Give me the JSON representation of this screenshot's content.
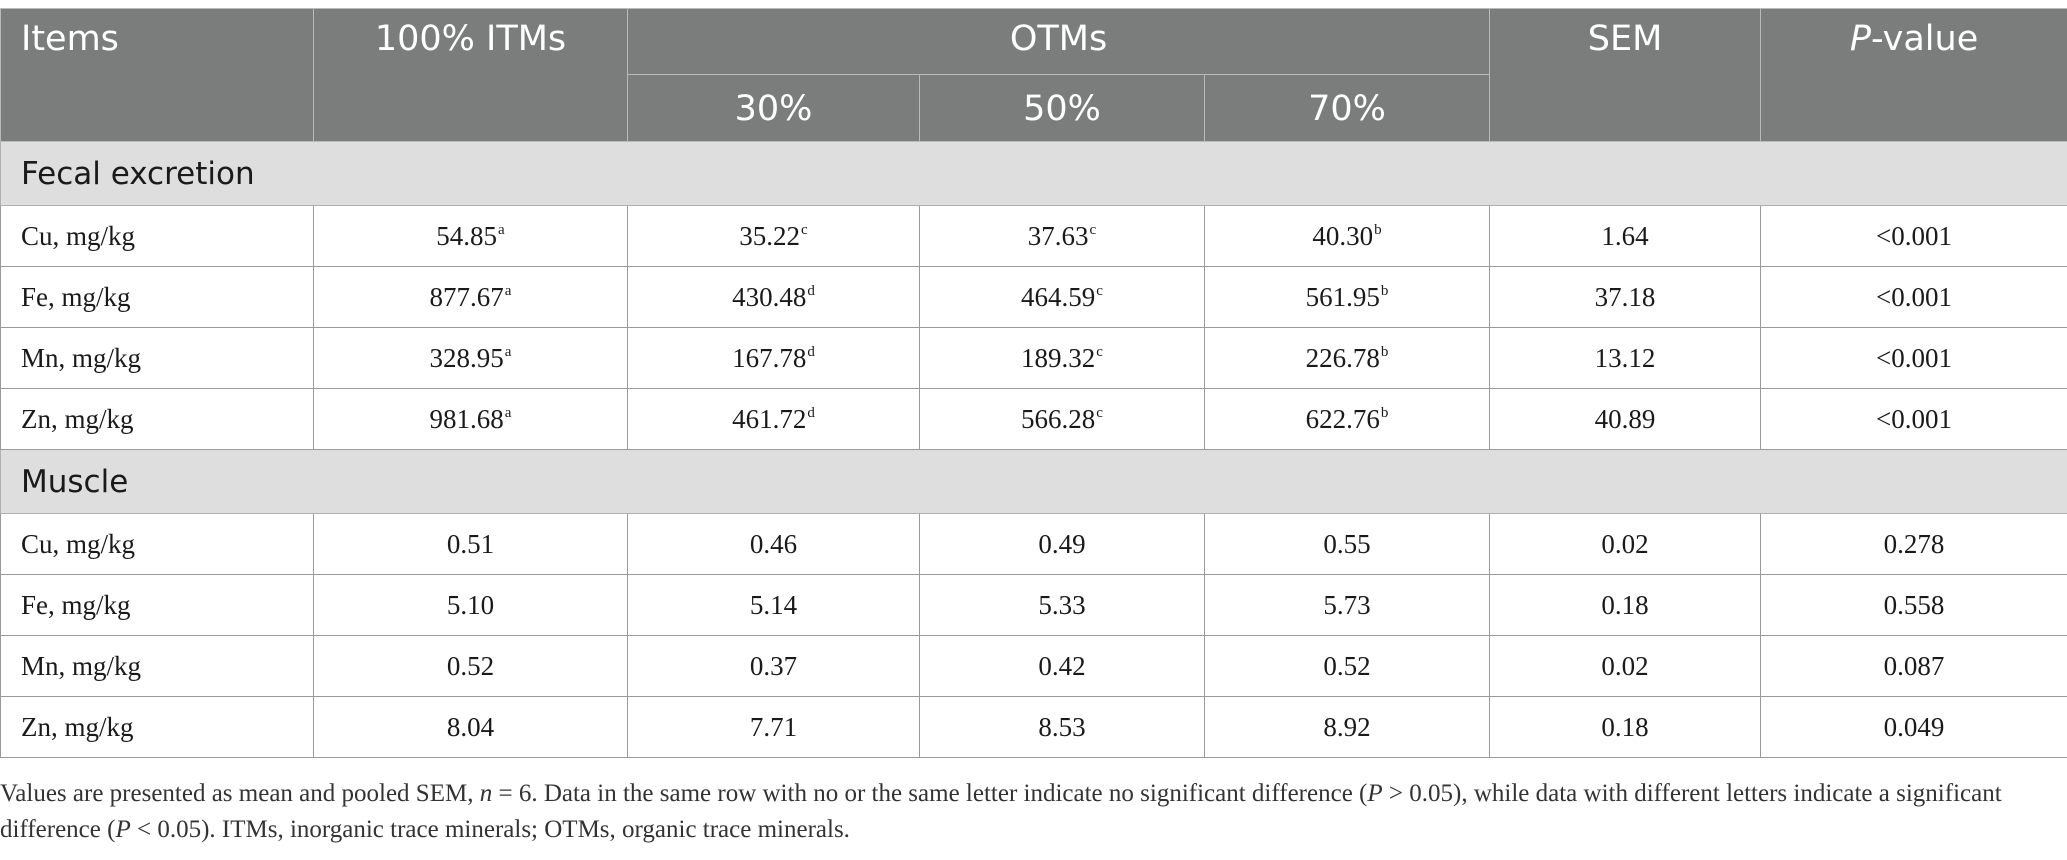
{
  "header": {
    "items": "Items",
    "itms": "100% ITMs",
    "otms": "OTMs",
    "sem": "SEM",
    "p_italic": "P",
    "p_rest": "-value",
    "sub": [
      "30%",
      "50%",
      "70%"
    ]
  },
  "sections": [
    {
      "title": "Fecal excretion",
      "rows": [
        {
          "label": "Cu, mg/kg",
          "cells": [
            {
              "v": "54.85",
              "s": "a"
            },
            {
              "v": "35.22",
              "s": "c"
            },
            {
              "v": "37.63",
              "s": "c"
            },
            {
              "v": "40.30",
              "s": "b"
            }
          ],
          "sem": "1.64",
          "p": "<0.001"
        },
        {
          "label": "Fe, mg/kg",
          "cells": [
            {
              "v": "877.67",
              "s": "a"
            },
            {
              "v": "430.48",
              "s": "d"
            },
            {
              "v": "464.59",
              "s": "c"
            },
            {
              "v": "561.95",
              "s": "b"
            }
          ],
          "sem": "37.18",
          "p": "<0.001"
        },
        {
          "label": "Mn, mg/kg",
          "cells": [
            {
              "v": "328.95",
              "s": "a"
            },
            {
              "v": "167.78",
              "s": "d"
            },
            {
              "v": "189.32",
              "s": "c"
            },
            {
              "v": "226.78",
              "s": "b"
            }
          ],
          "sem": "13.12",
          "p": "<0.001"
        },
        {
          "label": "Zn, mg/kg",
          "cells": [
            {
              "v": "981.68",
              "s": "a"
            },
            {
              "v": "461.72",
              "s": "d"
            },
            {
              "v": "566.28",
              "s": "c"
            },
            {
              "v": "622.76",
              "s": "b"
            }
          ],
          "sem": "40.89",
          "p": "<0.001"
        }
      ]
    },
    {
      "title": "Muscle",
      "rows": [
        {
          "label": "Cu, mg/kg",
          "cells": [
            {
              "v": "0.51",
              "s": ""
            },
            {
              "v": "0.46",
              "s": ""
            },
            {
              "v": "0.49",
              "s": ""
            },
            {
              "v": "0.55",
              "s": ""
            }
          ],
          "sem": "0.02",
          "p": "0.278"
        },
        {
          "label": "Fe, mg/kg",
          "cells": [
            {
              "v": "5.10",
              "s": ""
            },
            {
              "v": "5.14",
              "s": ""
            },
            {
              "v": "5.33",
              "s": ""
            },
            {
              "v": "5.73",
              "s": ""
            }
          ],
          "sem": "0.18",
          "p": "0.558"
        },
        {
          "label": "Mn, mg/kg",
          "cells": [
            {
              "v": "0.52",
              "s": ""
            },
            {
              "v": "0.37",
              "s": ""
            },
            {
              "v": "0.42",
              "s": ""
            },
            {
              "v": "0.52",
              "s": ""
            }
          ],
          "sem": "0.02",
          "p": "0.087"
        },
        {
          "label": "Zn, mg/kg",
          "cells": [
            {
              "v": "8.04",
              "s": ""
            },
            {
              "v": "7.71",
              "s": ""
            },
            {
              "v": "8.53",
              "s": ""
            },
            {
              "v": "8.92",
              "s": ""
            }
          ],
          "sem": "0.18",
          "p": "0.049"
        }
      ]
    }
  ],
  "footnote": [
    {
      "t": "Values are presented as mean and pooled SEM, ",
      "i": false
    },
    {
      "t": "n",
      "i": true
    },
    {
      "t": " = 6. Data in the same row with no or the same letter indicate no significant difference (",
      "i": false
    },
    {
      "t": "P",
      "i": true
    },
    {
      "t": " > 0.05), while data with different letters indicate a significant difference (",
      "i": false
    },
    {
      "t": "P",
      "i": true
    },
    {
      "t": " < 0.05). ITMs, inorganic trace minerals; OTMs, organic trace minerals.",
      "i": false
    }
  ],
  "colors": {
    "header_bg": "#7b7d7c",
    "header_text": "#ffffff",
    "section_bg": "#dedede",
    "border": "#9a9a9a"
  }
}
